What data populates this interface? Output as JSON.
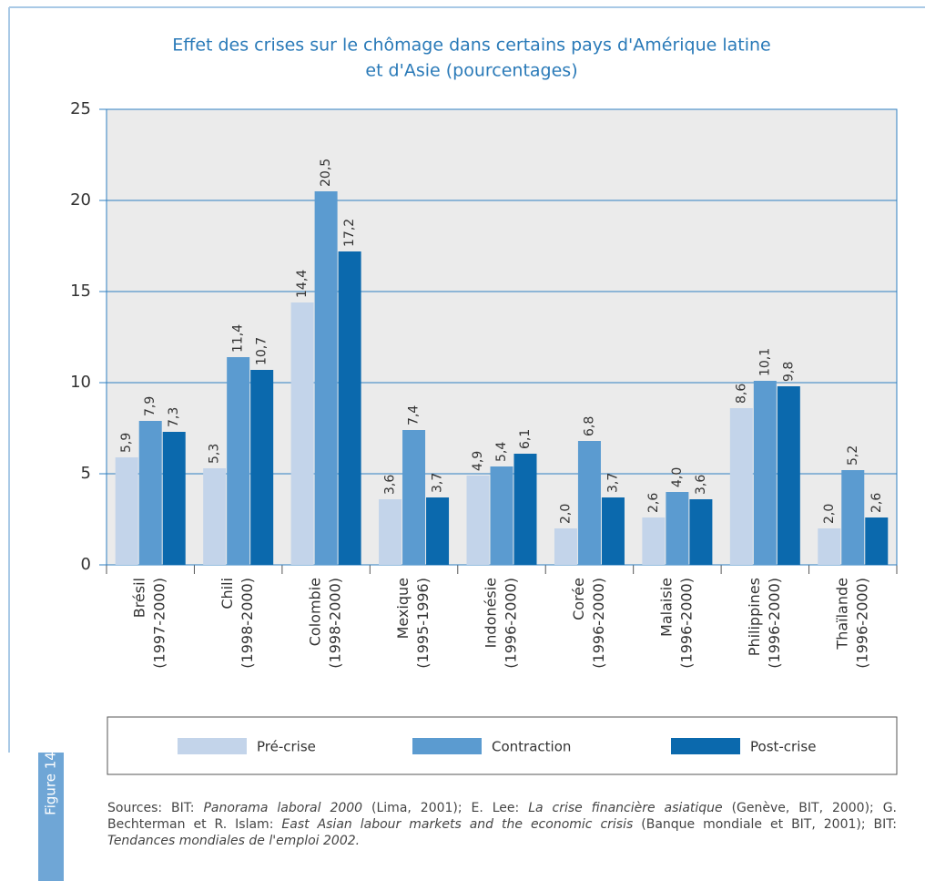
{
  "chart_data": {
    "type": "bar",
    "title": [
      "Effet des crises sur le chômage dans certains pays d'Amérique latine",
      "et d'Asie (pourcentages)"
    ],
    "categories": [
      [
        "Brésil",
        "(1997-2000)"
      ],
      [
        "Chili",
        "(1998-2000)"
      ],
      [
        "Colombie",
        "(1998-2000)"
      ],
      [
        "Mexique",
        "(1995-1996)"
      ],
      [
        "Indonésie",
        "(1996-2000)"
      ],
      [
        "Corée",
        "(1996-2000)"
      ],
      [
        "Malaisie",
        "(1996-2000)"
      ],
      [
        "Philippines",
        "(1996-2000)"
      ],
      [
        "Thaïlande",
        "(1996-2000)"
      ]
    ],
    "series": [
      {
        "name": "Pré-crise",
        "color": "#c3d4ea",
        "values": [
          5.9,
          5.3,
          14.4,
          3.6,
          4.9,
          2.0,
          2.6,
          8.6,
          2.0
        ],
        "value_labels": [
          "5,9",
          "5,3",
          "14,4",
          "3,6",
          "4,9",
          "2,0",
          "2,6",
          "8,6",
          "2,0"
        ]
      },
      {
        "name": "Contraction",
        "color": "#5b9bd0",
        "values": [
          7.9,
          11.4,
          20.5,
          7.4,
          5.4,
          6.8,
          4.0,
          10.1,
          5.2
        ],
        "value_labels": [
          "7,9",
          "11,4",
          "20,5",
          "7,4",
          "5,4",
          "6,8",
          "4,0",
          "10,1",
          "5,2"
        ]
      },
      {
        "name": "Post-crise",
        "color": "#0b69ad",
        "values": [
          7.3,
          10.7,
          17.2,
          3.7,
          6.1,
          3.7,
          3.6,
          9.8,
          2.6
        ],
        "value_labels": [
          "7,3",
          "10,7",
          "17,2",
          "3,7",
          "6,1",
          "3,7",
          "3,6",
          "9,8",
          "2,6"
        ]
      }
    ],
    "ylim": [
      0,
      25
    ],
    "yticks": [
      0,
      5,
      10,
      15,
      20,
      25
    ],
    "grid": true,
    "legend": "bottom"
  },
  "figure_label": "Figure 14",
  "source": [
    {
      "text": "Sources: BIT: ",
      "italic": false
    },
    {
      "text": "Panorama laboral 2000",
      "italic": true
    },
    {
      "text": " (Lima, 2001); E. Lee: ",
      "italic": false
    },
    {
      "text": "La crise financière asiatique",
      "italic": true
    },
    {
      "text": " (Genève, BIT, 2000); G. Bechterman et R. Islam: ",
      "italic": false
    },
    {
      "text": "East Asian labour markets and the economic crisis",
      "italic": true
    },
    {
      "text": " (Banque mondiale et BIT, 2001); BIT: ",
      "italic": false
    },
    {
      "text": "Tendances mondiales de l'emploi 2002.",
      "italic": true
    }
  ]
}
